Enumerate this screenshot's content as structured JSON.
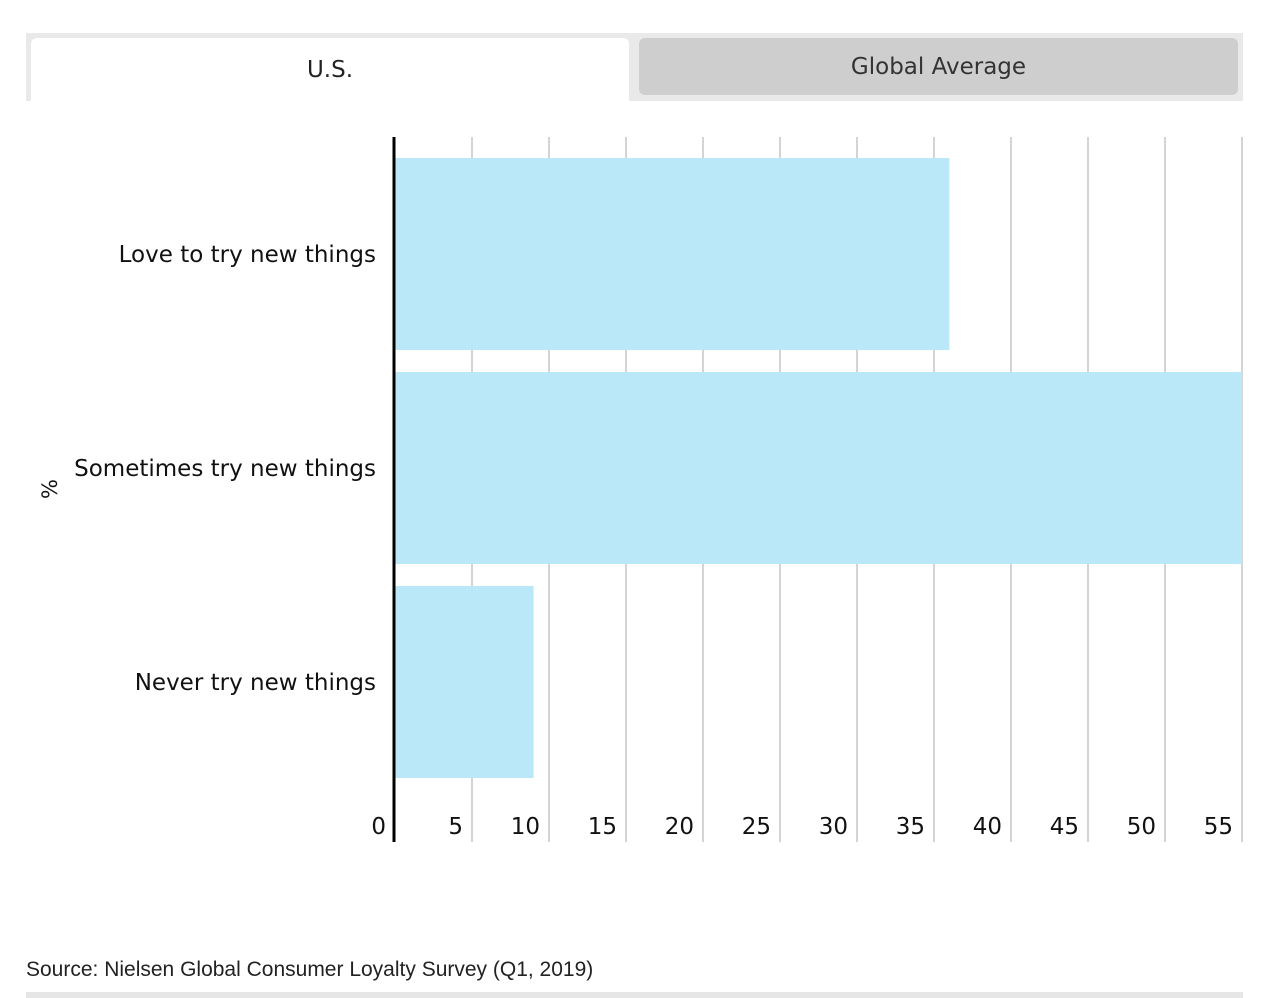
{
  "tabs": [
    {
      "label": "U.S.",
      "active": true
    },
    {
      "label": "Global Average",
      "active": false
    }
  ],
  "chart_data": {
    "type": "bar",
    "orientation": "horizontal",
    "categories": [
      "Love to try new things",
      "Sometimes try new things",
      "Never try new things"
    ],
    "values": [
      36,
      55,
      9
    ],
    "xlim": [
      0,
      55
    ],
    "xticks": [
      0,
      5,
      10,
      15,
      20,
      25,
      30,
      35,
      40,
      45,
      50,
      55
    ],
    "ylabel": "%",
    "grid": true,
    "bar_color": "#bae8f8",
    "grid_color": "#d4d4d4",
    "axis_color": "#000000"
  },
  "source": "Source: Nielsen Global Consumer Loyalty Survey (Q1, 2019)"
}
